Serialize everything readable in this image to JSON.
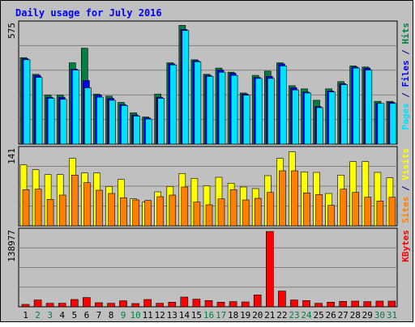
{
  "chart_data": {
    "type": "bar",
    "title": "Daily usage for July 2016",
    "categories": [
      "1",
      "2",
      "3",
      "4",
      "5",
      "6",
      "7",
      "8",
      "9",
      "10",
      "11",
      "12",
      "13",
      "14",
      "15",
      "16",
      "17",
      "18",
      "19",
      "20",
      "21",
      "22",
      "23",
      "24",
      "25",
      "26",
      "27",
      "28",
      "29",
      "30",
      "31"
    ],
    "weekend_days": [
      "2",
      "3",
      "9",
      "10",
      "16",
      "17",
      "23",
      "24",
      "30",
      "31"
    ],
    "panels": [
      {
        "max_label": "575",
        "ylim": [
          0,
          575
        ],
        "axis_label_parts": [
          {
            "text": "Pages",
            "color": "#00e0ff"
          },
          {
            "text": " / ",
            "color": "#000080"
          },
          {
            "text": "Files",
            "color": "#0000ff"
          },
          {
            "text": " / ",
            "color": "#000080"
          },
          {
            "text": "Hits",
            "color": "#008040"
          }
        ],
        "series": [
          {
            "name": "Hits",
            "color": "#008040",
            "values": [
              415,
              335,
              235,
              235,
              390,
              460,
              240,
              230,
              200,
              150,
              130,
              240,
              390,
              570,
              405,
              335,
              365,
              345,
              245,
              330,
              350,
              390,
              280,
              265,
              210,
              265,
              300,
              375,
              370,
              205,
              205
            ]
          },
          {
            "name": "Files",
            "color": "#0000ff",
            "values": [
              410,
              330,
              225,
              225,
              360,
              305,
              235,
              220,
              190,
              140,
              125,
              225,
              385,
              550,
              400,
              330,
              355,
              340,
              240,
              320,
              325,
              385,
              270,
              250,
              180,
              255,
              290,
              370,
              365,
              195,
              200
            ]
          },
          {
            "name": "Pages",
            "color": "#00e0ff",
            "values": [
              405,
              320,
              220,
              215,
              355,
              270,
              225,
              210,
              185,
              135,
              120,
              220,
              380,
              545,
              395,
              325,
              345,
              330,
              235,
              315,
              315,
              375,
              260,
              245,
              175,
              250,
              285,
              365,
              355,
              195,
              195
            ]
          }
        ]
      },
      {
        "max_label": "141",
        "ylim": [
          0,
          141
        ],
        "axis_label_parts": [
          {
            "text": "Sites",
            "color": "#ff8000"
          },
          {
            "text": " / ",
            "color": "#000080"
          },
          {
            "text": "Visits",
            "color": "#ffff00"
          }
        ],
        "series": [
          {
            "name": "Visits",
            "color": "#ffff00",
            "values": [
              113,
              104,
              95,
              95,
              125,
              98,
              98,
              73,
              86,
              50,
              44,
              63,
              73,
              97,
              88,
              74,
              90,
              79,
              72,
              69,
              93,
              125,
              137,
              100,
              99,
              60,
              94,
              119,
              119,
              99,
              89
            ]
          },
          {
            "name": "Sites",
            "color": "#ff8000",
            "values": [
              67,
              68,
              49,
              57,
              94,
              80,
              66,
              60,
              52,
              48,
              47,
              54,
              57,
              72,
              44,
              39,
              50,
              67,
              48,
              51,
              62,
              102,
              102,
              61,
              58,
              38,
              68,
              62,
              53,
              46,
              53
            ]
          }
        ]
      },
      {
        "max_label": "138977",
        "ylim": [
          0,
          138977
        ],
        "axis_label_parts": [
          {
            "text": "KBytes",
            "color": "#ff0000"
          }
        ],
        "series": [
          {
            "name": "KBytes",
            "color": "#ff0000",
            "values": [
              4500,
              12500,
              6500,
              6500,
              13500,
              17000,
              7500,
              6500,
              11000,
              6000,
              13500,
              6500,
              8500,
              18000,
              14000,
              11500,
              8500,
              9500,
              9000,
              22000,
              138977,
              29000,
              12500,
              11500,
              6500,
              8500,
              10000,
              10500,
              9500,
              10500,
              10500
            ]
          }
        ]
      }
    ]
  }
}
